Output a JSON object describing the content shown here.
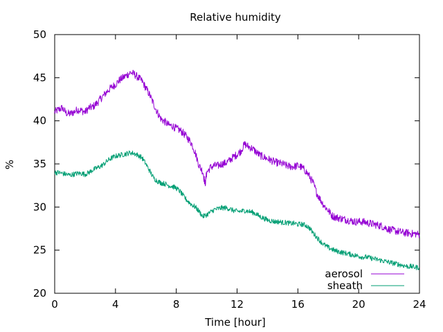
{
  "chart_data": {
    "type": "line",
    "title": "Relative humidity",
    "xlabel": "Time [hour]",
    "ylabel": "%",
    "xlim": [
      0,
      24
    ],
    "ylim": [
      20,
      50
    ],
    "xticks": [
      0,
      4,
      8,
      12,
      16,
      20,
      24
    ],
    "yticks": [
      20,
      25,
      30,
      35,
      40,
      45,
      50
    ],
    "grid": false,
    "legend_position": "bottom-right",
    "series": [
      {
        "name": "aerosol",
        "color": "#9400d3",
        "x": [
          0,
          0.25,
          0.5,
          0.75,
          1,
          1.25,
          1.5,
          1.75,
          2,
          2.25,
          2.5,
          2.75,
          3,
          3.25,
          3.5,
          3.75,
          4,
          4.25,
          4.5,
          4.75,
          5,
          5.25,
          5.5,
          5.75,
          6,
          6.25,
          6.5,
          6.75,
          7,
          7.25,
          7.5,
          7.75,
          8,
          8.25,
          8.5,
          8.75,
          9,
          9.25,
          9.5,
          9.75,
          9.9,
          10,
          10.25,
          10.5,
          10.75,
          11,
          11.25,
          11.5,
          11.75,
          12,
          12.25,
          12.5,
          12.75,
          13,
          13.25,
          13.5,
          13.75,
          14,
          14.25,
          14.5,
          14.75,
          15,
          15.25,
          15.5,
          15.75,
          16,
          16.25,
          16.5,
          16.75,
          17,
          17.25,
          17.5,
          17.75,
          18,
          18.25,
          18.5,
          18.75,
          19,
          19.25,
          19.5,
          19.75,
          20,
          20.25,
          20.5,
          20.75,
          21,
          21.25,
          21.5,
          21.75,
          22,
          22.25,
          22.5,
          22.75,
          23,
          23.25,
          23.5,
          23.75,
          24
        ],
        "y": [
          41.0,
          41.3,
          41.5,
          40.9,
          40.8,
          41.0,
          41.3,
          41.2,
          41.0,
          41.5,
          41.6,
          42.0,
          42.5,
          43.0,
          43.5,
          43.9,
          44.2,
          44.7,
          45.0,
          45.3,
          45.6,
          45.4,
          45.0,
          44.6,
          43.8,
          43.0,
          42.0,
          41.0,
          40.2,
          39.9,
          39.5,
          39.4,
          39.1,
          38.9,
          38.5,
          38.0,
          37.4,
          36.3,
          34.8,
          34.1,
          32.6,
          34.0,
          34.6,
          34.8,
          34.8,
          35.0,
          35.1,
          35.4,
          35.8,
          36.1,
          36.5,
          37.3,
          37.0,
          36.8,
          36.4,
          36.0,
          35.8,
          35.6,
          35.4,
          35.2,
          35.1,
          35.0,
          34.8,
          34.7,
          34.7,
          34.8,
          34.6,
          34.2,
          33.6,
          32.8,
          31.6,
          30.8,
          30.1,
          29.6,
          29.0,
          28.8,
          28.7,
          28.6,
          28.5,
          28.4,
          28.3,
          28.3,
          28.3,
          28.2,
          28.1,
          28.0,
          27.9,
          27.8,
          27.6,
          27.4,
          27.3,
          27.2,
          27.1,
          27.0,
          27.0,
          26.9,
          26.9,
          26.8
        ]
      },
      {
        "name": "sheath",
        "color": "#009e73",
        "x": [
          0,
          0.25,
          0.5,
          0.75,
          1,
          1.25,
          1.5,
          1.75,
          2,
          2.25,
          2.5,
          2.75,
          3,
          3.25,
          3.5,
          3.75,
          4,
          4.25,
          4.5,
          4.75,
          5,
          5.25,
          5.5,
          5.75,
          6,
          6.25,
          6.5,
          6.75,
          7,
          7.25,
          7.5,
          7.75,
          8,
          8.25,
          8.5,
          8.75,
          9,
          9.25,
          9.5,
          9.75,
          10,
          10.25,
          10.5,
          10.75,
          11,
          11.25,
          11.5,
          11.75,
          12,
          12.25,
          12.5,
          12.75,
          13,
          13.25,
          13.5,
          13.75,
          14,
          14.25,
          14.5,
          14.75,
          15,
          15.25,
          15.5,
          15.75,
          16,
          16.25,
          16.5,
          16.75,
          17,
          17.25,
          17.5,
          17.75,
          18,
          18.25,
          18.5,
          18.75,
          19,
          19.25,
          19.5,
          19.75,
          20,
          20.25,
          20.5,
          20.75,
          21,
          21.25,
          21.5,
          21.75,
          22,
          22.25,
          22.5,
          22.75,
          23,
          23.25,
          23.5,
          23.75,
          24
        ],
        "y": [
          34.0,
          34.0,
          33.9,
          33.8,
          33.7,
          33.8,
          33.9,
          33.9,
          33.8,
          34.0,
          34.3,
          34.5,
          34.7,
          35.0,
          35.4,
          35.7,
          35.9,
          36.0,
          36.1,
          36.2,
          36.3,
          36.2,
          36.0,
          35.7,
          35.0,
          34.2,
          33.4,
          33.0,
          32.8,
          32.7,
          32.5,
          32.4,
          32.2,
          31.8,
          31.2,
          30.7,
          30.3,
          30.0,
          29.5,
          28.9,
          29.1,
          29.4,
          29.7,
          29.8,
          29.9,
          29.9,
          29.8,
          29.6,
          29.5,
          29.5,
          29.6,
          29.5,
          29.4,
          29.2,
          28.9,
          28.7,
          28.5,
          28.4,
          28.3,
          28.3,
          28.2,
          28.2,
          28.1,
          28.1,
          28.0,
          28.0,
          27.9,
          27.6,
          27.0,
          26.5,
          26.0,
          25.6,
          25.3,
          25.1,
          24.9,
          24.8,
          24.7,
          24.6,
          24.5,
          24.4,
          24.3,
          24.2,
          24.2,
          24.1,
          24.0,
          23.9,
          23.8,
          23.7,
          23.6,
          23.5,
          23.4,
          23.3,
          23.2,
          23.1,
          23.1,
          23.0,
          23.0
        ]
      }
    ]
  }
}
